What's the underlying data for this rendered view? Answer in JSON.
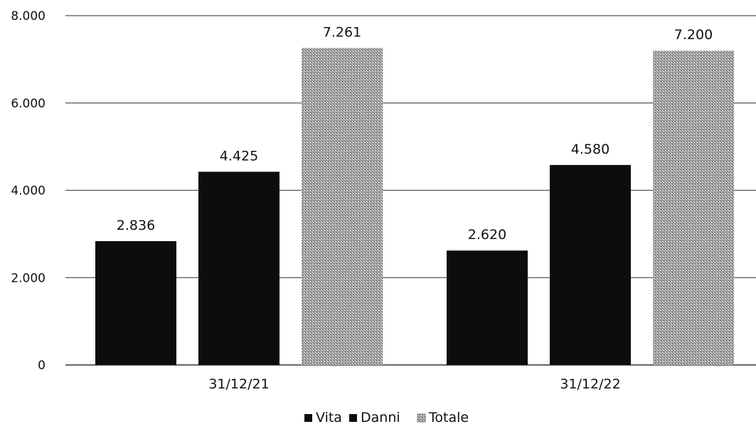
{
  "chart_data": {
    "type": "bar",
    "categories": [
      "31/12/21",
      "31/12/22"
    ],
    "series": [
      {
        "name": "Vita",
        "values": [
          2836,
          2620
        ]
      },
      {
        "name": "Danni",
        "values": [
          4425,
          4580
        ]
      },
      {
        "name": "Totale",
        "values": [
          7261,
          7200
        ]
      }
    ],
    "data_labels": [
      [
        "2.836",
        "2.620"
      ],
      [
        "4.425",
        "4.580"
      ],
      [
        "7.261",
        "7.200"
      ]
    ],
    "yticks": [
      0,
      2000,
      4000,
      6000,
      8000
    ],
    "ytick_labels": [
      "0",
      "2.000",
      "4.000",
      "6.000",
      "8.000"
    ],
    "ylim": [
      0,
      8000
    ],
    "grid": true,
    "legend_position": "bottom-center",
    "colors": {
      "Vita": "#0d0d0d",
      "Danni": "#0d0d0d",
      "Totale": "#a8a8a8"
    }
  }
}
